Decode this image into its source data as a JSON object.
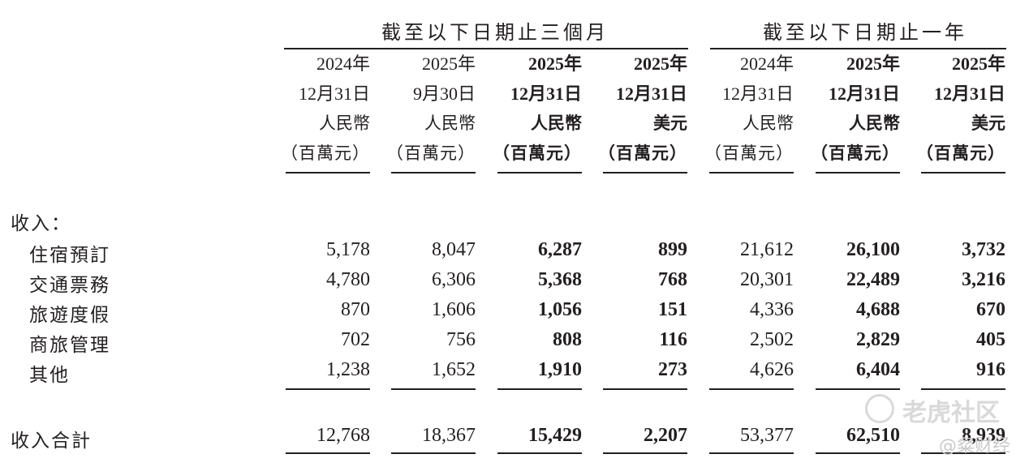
{
  "groups": [
    {
      "title": "截至以下日期止三個月"
    },
    {
      "title": "截至以下日期止一年"
    }
  ],
  "columns": [
    {
      "year": "2024年",
      "date": "12月31日",
      "currency": "人民幣",
      "unit": "（百萬元）"
    },
    {
      "year": "2025年",
      "date": "9月30日",
      "currency": "人民幣",
      "unit": "（百萬元）"
    },
    {
      "year": "2025年",
      "date": "12月31日",
      "currency": "人民幣",
      "unit": "（百萬元）"
    },
    {
      "year": "2025年",
      "date": "12月31日",
      "currency": "美元",
      "unit": "（百萬元）"
    },
    {
      "year": "2024年",
      "date": "12月31日",
      "currency": "人民幣",
      "unit": "（百萬元）"
    },
    {
      "year": "2025年",
      "date": "12月31日",
      "currency": "人民幣",
      "unit": "（百萬元）"
    },
    {
      "year": "2025年",
      "date": "12月31日",
      "currency": "美元",
      "unit": "（百萬元）"
    }
  ],
  "section_label": "收入：",
  "rows": [
    {
      "label": "住宿預訂",
      "values": [
        "5,178",
        "8,047",
        "6,287",
        "899",
        "21,612",
        "26,100",
        "3,732"
      ]
    },
    {
      "label": "交通票務",
      "values": [
        "4,780",
        "6,306",
        "5,368",
        "768",
        "20,301",
        "22,489",
        "3,216"
      ]
    },
    {
      "label": "旅遊度假",
      "values": [
        "870",
        "1,606",
        "1,056",
        "151",
        "4,336",
        "4,688",
        "670"
      ]
    },
    {
      "label": "商旅管理",
      "values": [
        "702",
        "756",
        "808",
        "116",
        "2,502",
        "2,829",
        "405"
      ]
    },
    {
      "label": "其他",
      "values": [
        "1,238",
        "1,652",
        "1,910",
        "273",
        "4,626",
        "6,404",
        "916"
      ]
    }
  ],
  "total": {
    "label": "收入合計",
    "values": [
      "12,768",
      "18,367",
      "15,429",
      "2,207",
      "53,377",
      "62,510",
      "8,939"
    ]
  },
  "watermark": {
    "brand": "老虎社区",
    "handle": "@粲财经"
  }
}
